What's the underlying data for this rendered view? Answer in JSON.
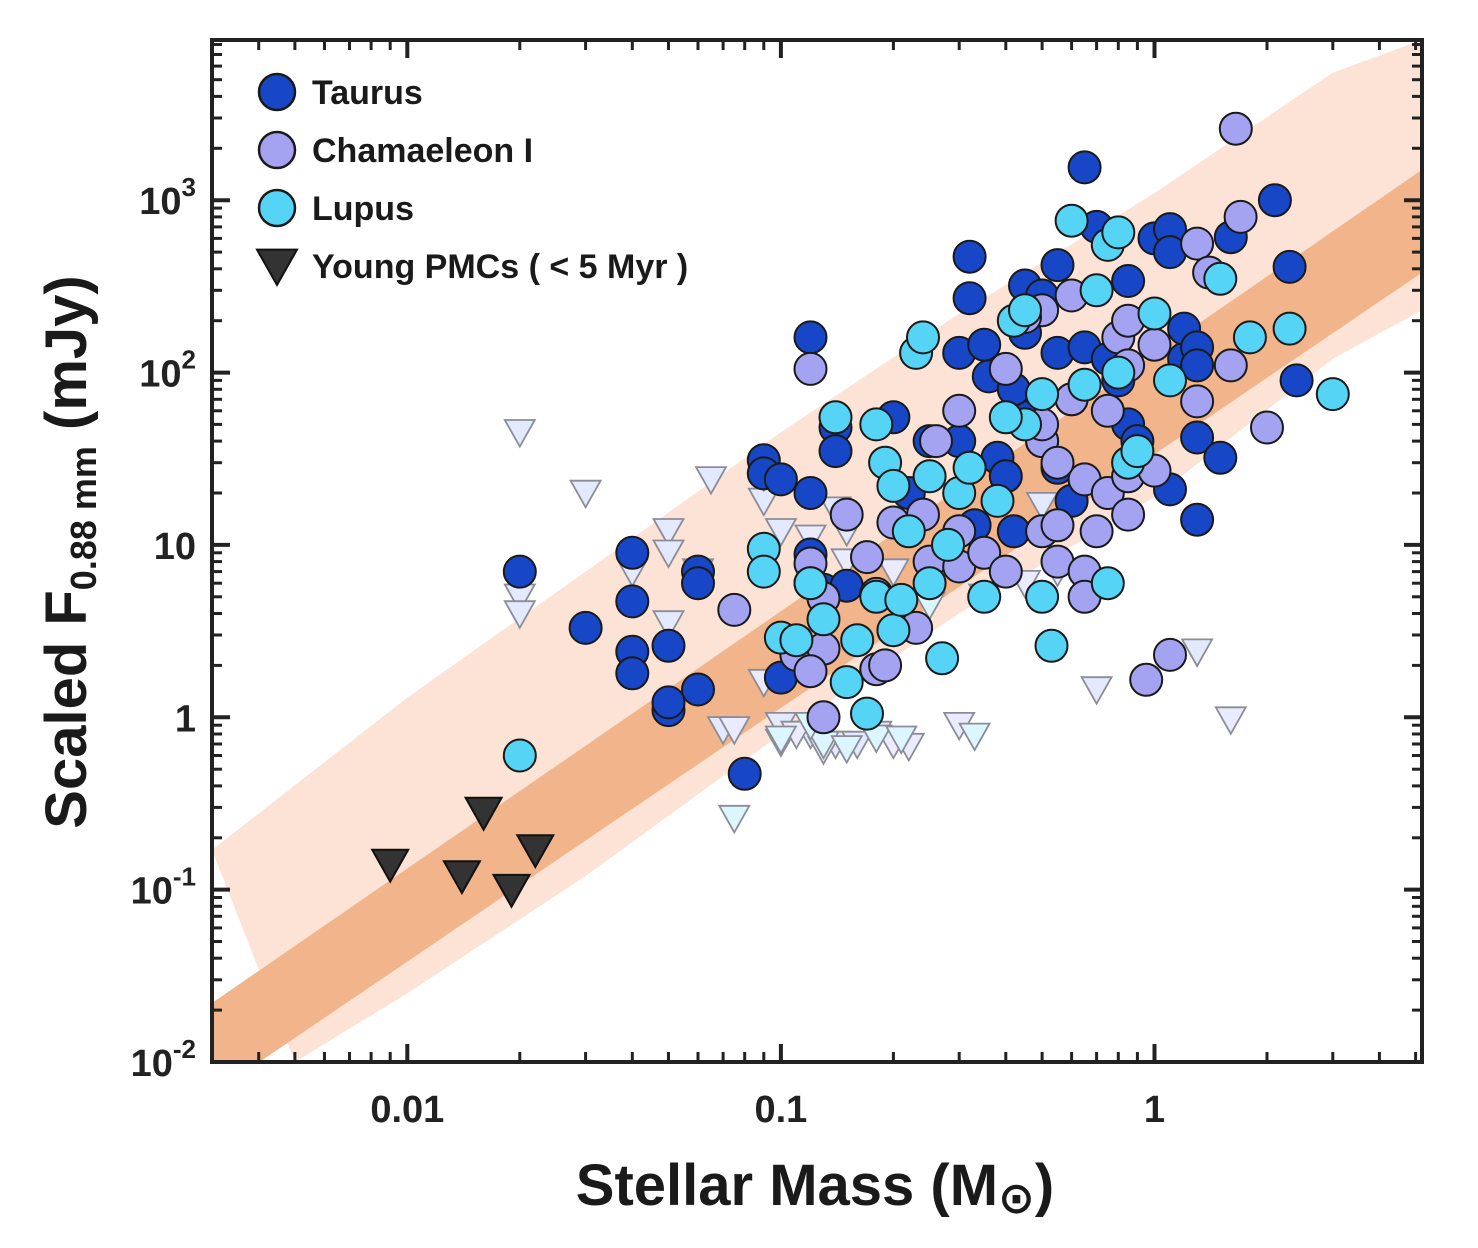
{
  "chart_data": {
    "type": "scatter",
    "xlabel": {
      "main": "Stellar Mass (M",
      "symbol": "⊙",
      "close": ")"
    },
    "ylabel": {
      "main": "Scaled F",
      "sub": "0.88 mm",
      "unit": " (mJy)"
    },
    "x_scale": "log",
    "y_scale": "log",
    "xlim": [
      0.003,
      5.2
    ],
    "ylim": [
      0.01,
      8500
    ],
    "x_ticks": [
      {
        "value": 0.01,
        "label": "0.01"
      },
      {
        "value": 0.1,
        "label": "0.1"
      },
      {
        "value": 1,
        "label": "1"
      }
    ],
    "y_ticks": [
      {
        "value": 0.01,
        "base": "10",
        "exp": "-2"
      },
      {
        "value": 0.1,
        "base": "10",
        "exp": "-1"
      },
      {
        "value": 1,
        "base": "1",
        "exp": ""
      },
      {
        "value": 10,
        "base": "10",
        "exp": ""
      },
      {
        "value": 100,
        "base": "10",
        "exp": "2"
      },
      {
        "value": 1000,
        "base": "10",
        "exp": "3"
      }
    ],
    "grid": false,
    "legend_position": "top-left",
    "colors": {
      "taurus": "#1747c6",
      "chamaeleon": "#a3a3f2",
      "lupus": "#56d4f5",
      "pmc": "#333333",
      "taurus_limit": "#e3e9ff",
      "cham_limit": "#ebebff",
      "lupus_limit": "#dcf6ff",
      "inner_band": "#f2b48a",
      "outer_band": "#fce3d5"
    },
    "legend": [
      {
        "key": "taurus",
        "label": "Taurus",
        "marker": "circle"
      },
      {
        "key": "chamaeleon",
        "label": "Chamaeleon I",
        "marker": "circle"
      },
      {
        "key": "lupus",
        "label": "Lupus",
        "marker": "circle"
      },
      {
        "key": "pmc",
        "label": "Young PMCs ( < 5 Myr )",
        "marker": "triangle-down"
      }
    ],
    "bands": {
      "inner": {
        "lower": [
          [
            0.003,
            0.0065
          ],
          [
            5.2,
            380
          ]
        ],
        "upper": [
          [
            0.003,
            0.022
          ],
          [
            5.2,
            1500
          ]
        ]
      },
      "outer": {
        "lower": [
          [
            0.005,
            0.01
          ],
          [
            0.01,
            0.025
          ],
          [
            0.03,
            0.12
          ],
          [
            0.1,
            0.8
          ],
          [
            0.3,
            4
          ],
          [
            1,
            19
          ],
          [
            3,
            120
          ],
          [
            5.2,
            230
          ]
        ],
        "upper": [
          [
            0.003,
            0.17
          ],
          [
            0.01,
            1.3
          ],
          [
            0.03,
            7
          ],
          [
            0.1,
            45
          ],
          [
            0.3,
            220
          ],
          [
            1,
            1100
          ],
          [
            3,
            5500
          ],
          [
            5.2,
            8500
          ]
        ]
      }
    },
    "series": [
      {
        "key": "taurus_limit",
        "marker": "triangle-down",
        "points": [
          [
            0.02,
            45
          ],
          [
            0.03,
            20
          ],
          [
            0.065,
            24
          ],
          [
            0.05,
            12
          ],
          [
            0.05,
            9
          ],
          [
            0.04,
            7
          ],
          [
            0.06,
            7
          ],
          [
            0.02,
            5
          ],
          [
            0.02,
            4
          ],
          [
            0.05,
            3.5
          ],
          [
            0.09,
            18
          ],
          [
            0.1,
            12
          ],
          [
            0.14,
            16
          ],
          [
            0.15,
            12
          ],
          [
            0.07,
            0.85
          ],
          [
            0.1,
            0.9
          ],
          [
            0.14,
            0.7
          ],
          [
            0.16,
            0.7
          ],
          [
            0.18,
            0.8
          ],
          [
            0.5,
            17
          ],
          [
            0.7,
            1.45
          ],
          [
            1.3,
            2.4
          ],
          [
            0.12,
            0.8
          ]
        ]
      },
      {
        "key": "cham_limit",
        "marker": "triangle-down",
        "points": [
          [
            0.09,
            25
          ],
          [
            0.12,
            11
          ],
          [
            0.15,
            8
          ],
          [
            0.2,
            7
          ],
          [
            0.25,
            5
          ],
          [
            0.1,
            0.72
          ],
          [
            0.11,
            0.8
          ],
          [
            0.13,
            0.65
          ],
          [
            0.2,
            0.7
          ],
          [
            0.22,
            0.68
          ],
          [
            0.3,
            0.9
          ],
          [
            0.45,
            6
          ],
          [
            0.55,
            7
          ],
          [
            1.6,
            0.97
          ],
          [
            0.09,
            1.6
          ],
          [
            0.075,
            0.85
          ]
        ]
      },
      {
        "key": "lupus_limit",
        "marker": "triangle-down",
        "points": [
          [
            0.075,
            0.26
          ],
          [
            0.1,
            0.75
          ],
          [
            0.13,
            0.7
          ],
          [
            0.15,
            0.66
          ],
          [
            0.18,
            0.76
          ],
          [
            0.21,
            0.75
          ],
          [
            0.33,
            0.78
          ],
          [
            0.12,
            0.9
          ],
          [
            0.25,
            4.5
          ],
          [
            0.35,
            5
          ]
        ]
      },
      {
        "key": "taurus",
        "marker": "circle",
        "points": [
          [
            0.04,
            9
          ],
          [
            0.04,
            4.7
          ],
          [
            0.04,
            2.4
          ],
          [
            0.04,
            1.8
          ],
          [
            0.03,
            3.3
          ],
          [
            0.02,
            7
          ],
          [
            0.05,
            2.6
          ],
          [
            0.05,
            1.1
          ],
          [
            0.05,
            1.22
          ],
          [
            0.06,
            7
          ],
          [
            0.06,
            6
          ],
          [
            0.06,
            1.45
          ],
          [
            0.08,
            0.47
          ],
          [
            0.09,
            31
          ],
          [
            0.09,
            26
          ],
          [
            0.1,
            24
          ],
          [
            0.12,
            20
          ],
          [
            0.12,
            160
          ],
          [
            0.12,
            8.8
          ],
          [
            0.13,
            5.5
          ],
          [
            0.14,
            48
          ],
          [
            0.14,
            35
          ],
          [
            0.15,
            5.8
          ],
          [
            0.1,
            1.7
          ],
          [
            0.2,
            55
          ],
          [
            0.22,
            20
          ],
          [
            0.25,
            40
          ],
          [
            0.3,
            40
          ],
          [
            0.3,
            130
          ],
          [
            0.32,
            470
          ],
          [
            0.32,
            270
          ],
          [
            0.35,
            145
          ],
          [
            0.36,
            95
          ],
          [
            0.38,
            32
          ],
          [
            0.4,
            25
          ],
          [
            0.42,
            12
          ],
          [
            0.45,
            320
          ],
          [
            0.45,
            170
          ],
          [
            0.45,
            65
          ],
          [
            0.5,
            280
          ],
          [
            0.5,
            40
          ],
          [
            0.55,
            420
          ],
          [
            0.55,
            130
          ],
          [
            0.6,
            70
          ],
          [
            0.65,
            1550
          ],
          [
            0.65,
            140
          ],
          [
            0.7,
            700
          ],
          [
            0.75,
            120
          ],
          [
            0.8,
            90
          ],
          [
            0.85,
            340
          ],
          [
            0.85,
            50
          ],
          [
            0.9,
            40
          ],
          [
            1.0,
            600
          ],
          [
            1.1,
            680
          ],
          [
            1.1,
            500
          ],
          [
            1.2,
            120
          ],
          [
            1.2,
            180
          ],
          [
            1.3,
            140
          ],
          [
            1.3,
            110
          ],
          [
            1.3,
            42
          ],
          [
            1.3,
            14
          ],
          [
            1.5,
            32
          ],
          [
            1.1,
            21
          ],
          [
            1.6,
            610
          ],
          [
            2.1,
            1000
          ],
          [
            2.3,
            410
          ],
          [
            2.4,
            90
          ],
          [
            0.55,
            28
          ],
          [
            0.6,
            18
          ],
          [
            0.45,
            55
          ],
          [
            0.33,
            13
          ],
          [
            0.42,
            80
          ]
        ]
      },
      {
        "key": "chamaeleon",
        "marker": "circle",
        "points": [
          [
            0.075,
            4.2
          ],
          [
            0.11,
            2.3
          ],
          [
            0.12,
            105
          ],
          [
            0.12,
            7.8
          ],
          [
            0.12,
            6
          ],
          [
            0.13,
            4.9
          ],
          [
            0.13,
            2.5
          ],
          [
            0.12,
            1.85
          ],
          [
            0.13,
            1.0
          ],
          [
            0.15,
            15
          ],
          [
            0.17,
            8.5
          ],
          [
            0.18,
            5.2
          ],
          [
            0.18,
            1.9
          ],
          [
            0.19,
            2.0
          ],
          [
            0.2,
            13.5
          ],
          [
            0.23,
            3.3
          ],
          [
            0.24,
            15
          ],
          [
            0.25,
            8
          ],
          [
            0.26,
            40
          ],
          [
            0.3,
            7.5
          ],
          [
            0.3,
            12
          ],
          [
            0.3,
            60
          ],
          [
            0.35,
            9
          ],
          [
            0.4,
            7
          ],
          [
            0.4,
            105
          ],
          [
            0.5,
            12
          ],
          [
            0.5,
            40
          ],
          [
            0.5,
            50
          ],
          [
            0.5,
            230
          ],
          [
            0.55,
            8
          ],
          [
            0.55,
            13
          ],
          [
            0.6,
            280
          ],
          [
            0.6,
            70
          ],
          [
            0.65,
            24
          ],
          [
            0.65,
            7
          ],
          [
            0.65,
            5
          ],
          [
            0.7,
            12
          ],
          [
            0.75,
            20
          ],
          [
            0.75,
            60
          ],
          [
            0.8,
            160
          ],
          [
            0.85,
            200
          ],
          [
            0.85,
            110
          ],
          [
            0.85,
            25
          ],
          [
            0.85,
            15
          ],
          [
            0.95,
            1.65
          ],
          [
            1.0,
            27
          ],
          [
            1.1,
            2.3
          ],
          [
            1.0,
            145
          ],
          [
            1.3,
            560
          ],
          [
            1.3,
            68
          ],
          [
            1.4,
            380
          ],
          [
            1.6,
            110
          ],
          [
            1.65,
            2600
          ],
          [
            1.7,
            800
          ],
          [
            2.0,
            48
          ],
          [
            0.45,
            210
          ],
          [
            0.55,
            30
          ]
        ]
      },
      {
        "key": "lupus",
        "marker": "circle",
        "points": [
          [
            0.02,
            0.6
          ],
          [
            0.09,
            9.5
          ],
          [
            0.09,
            7
          ],
          [
            0.1,
            2.9
          ],
          [
            0.11,
            2.8
          ],
          [
            0.12,
            6
          ],
          [
            0.13,
            3.7
          ],
          [
            0.14,
            55
          ],
          [
            0.15,
            1.6
          ],
          [
            0.16,
            2.8
          ],
          [
            0.17,
            1.05
          ],
          [
            0.18,
            50
          ],
          [
            0.18,
            5
          ],
          [
            0.19,
            30
          ],
          [
            0.2,
            22
          ],
          [
            0.2,
            3.2
          ],
          [
            0.21,
            4.8
          ],
          [
            0.22,
            12
          ],
          [
            0.23,
            130
          ],
          [
            0.24,
            160
          ],
          [
            0.25,
            25
          ],
          [
            0.25,
            6
          ],
          [
            0.27,
            2.2
          ],
          [
            0.28,
            10
          ],
          [
            0.3,
            20
          ],
          [
            0.32,
            28
          ],
          [
            0.35,
            5
          ],
          [
            0.38,
            18
          ],
          [
            0.42,
            200
          ],
          [
            0.45,
            230
          ],
          [
            0.45,
            50
          ],
          [
            0.5,
            75
          ],
          [
            0.5,
            5
          ],
          [
            0.53,
            2.6
          ],
          [
            0.6,
            760
          ],
          [
            0.7,
            300
          ],
          [
            0.75,
            550
          ],
          [
            0.8,
            650
          ],
          [
            0.8,
            100
          ],
          [
            0.85,
            30
          ],
          [
            0.9,
            35
          ],
          [
            1.0,
            220
          ],
          [
            1.1,
            90
          ],
          [
            1.5,
            350
          ],
          [
            1.8,
            160
          ],
          [
            2.3,
            180
          ],
          [
            3.0,
            75
          ],
          [
            0.75,
            6
          ],
          [
            0.65,
            85
          ],
          [
            0.4,
            55
          ]
        ]
      },
      {
        "key": "pmc",
        "marker": "triangle-down",
        "points": [
          [
            0.009,
            0.14
          ],
          [
            0.014,
            0.12
          ],
          [
            0.016,
            0.28
          ],
          [
            0.019,
            0.1
          ],
          [
            0.022,
            0.17
          ]
        ]
      }
    ]
  }
}
